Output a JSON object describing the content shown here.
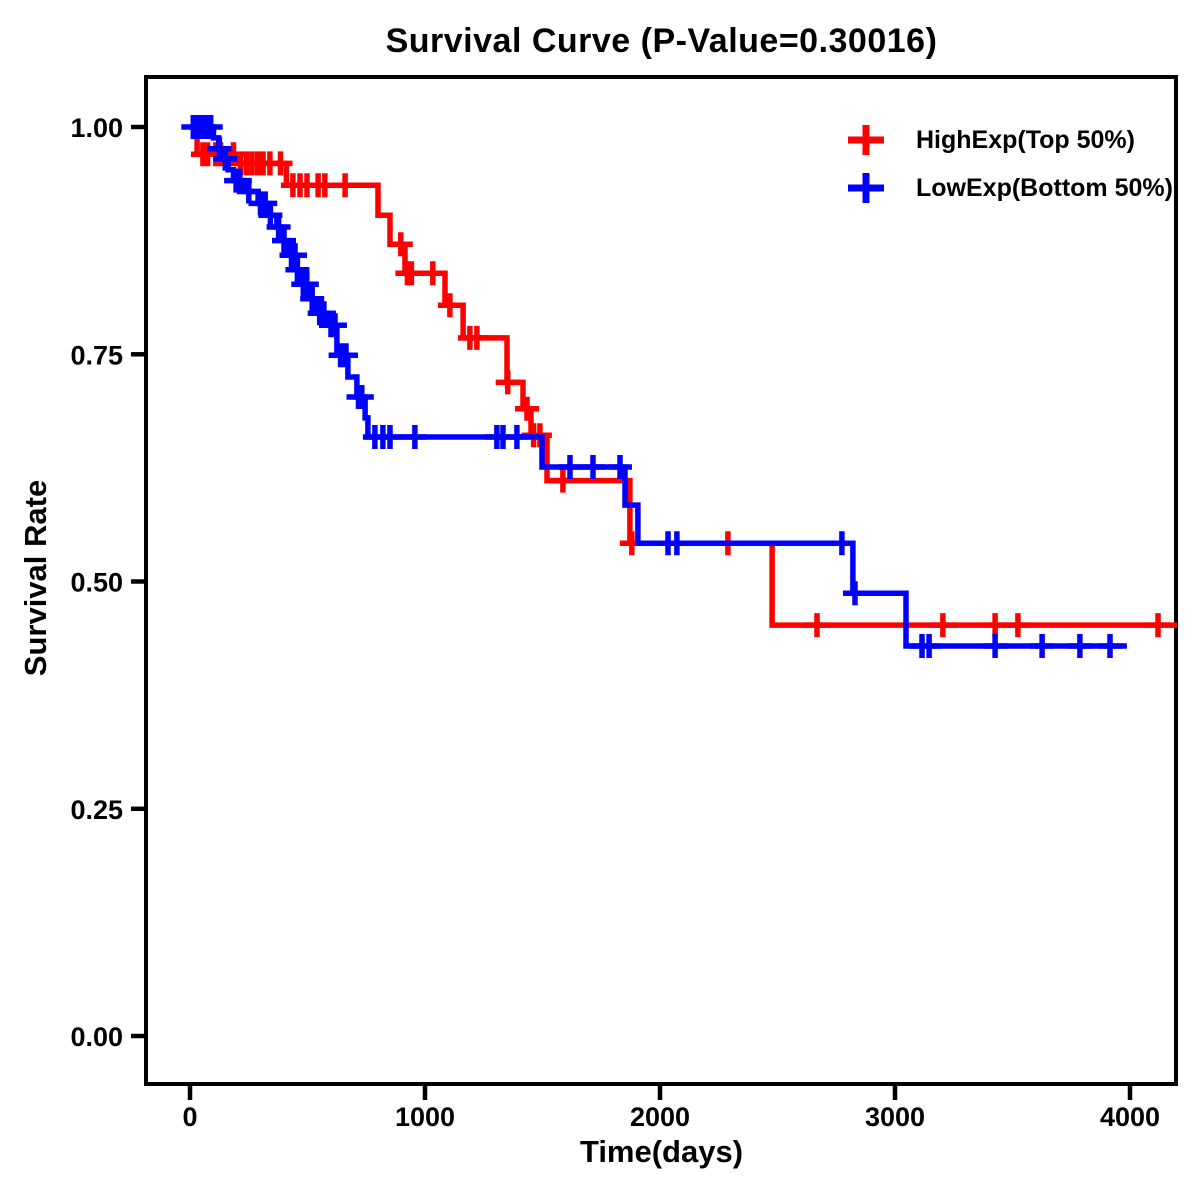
{
  "chart_data": {
    "type": "line",
    "subtype": "kaplan-meier-step-curve",
    "title": "Survival Curve (P-Value=0.30016)",
    "p_value": "0.30016",
    "xlabel": "Time(days)",
    "ylabel": "Survival Rate",
    "xlim": [
      0,
      4296
    ],
    "ylim": [
      0.0,
      1.0
    ],
    "x_ticks": [
      0,
      1000,
      2000,
      3000,
      4000
    ],
    "y_ticks": [
      0.0,
      0.25,
      0.5,
      0.75,
      1.0
    ],
    "y_tick_labels": [
      "0.00",
      "0.25",
      "0.50",
      "0.75",
      "1.00"
    ],
    "grid": false,
    "legend_position": "top-right-inside",
    "colors": {
      "axis": "#000000",
      "background": "#FFFFFF",
      "high": "#FF0000",
      "low": "#0000FF"
    },
    "series": [
      {
        "name": "HighExp(Top 50%)",
        "color": "#FF0000",
        "end_time": 4200,
        "steps": [
          [
            0,
            1.0
          ],
          [
            30,
            0.97
          ],
          [
            200,
            0.96
          ],
          [
            410,
            0.936
          ],
          [
            800,
            0.903
          ],
          [
            851,
            0.871
          ],
          [
            915,
            0.839
          ],
          [
            1085,
            0.804
          ],
          [
            1162,
            0.768
          ],
          [
            1349,
            0.719
          ],
          [
            1417,
            0.69
          ],
          [
            1451,
            0.661
          ],
          [
            1519,
            0.611
          ],
          [
            1872,
            0.542
          ],
          [
            2477,
            0.452
          ]
        ],
        "censors": [
          [
            55,
            0.97
          ],
          [
            75,
            0.97
          ],
          [
            110,
            0.97
          ],
          [
            130,
            0.97
          ],
          [
            185,
            0.97
          ],
          [
            215,
            0.96
          ],
          [
            240,
            0.96
          ],
          [
            264,
            0.96
          ],
          [
            288,
            0.96
          ],
          [
            311,
            0.96
          ],
          [
            340,
            0.96
          ],
          [
            385,
            0.96
          ],
          [
            438,
            0.936
          ],
          [
            468,
            0.936
          ],
          [
            498,
            0.936
          ],
          [
            545,
            0.936
          ],
          [
            574,
            0.936
          ],
          [
            660,
            0.936
          ],
          [
            897,
            0.871
          ],
          [
            925,
            0.839
          ],
          [
            942,
            0.839
          ],
          [
            1033,
            0.839
          ],
          [
            1106,
            0.804
          ],
          [
            1191,
            0.768
          ],
          [
            1221,
            0.768
          ],
          [
            1352,
            0.719
          ],
          [
            1434,
            0.69
          ],
          [
            1462,
            0.661
          ],
          [
            1489,
            0.661
          ],
          [
            1587,
            0.611
          ],
          [
            1880,
            0.542
          ],
          [
            2289,
            0.542
          ],
          [
            2668,
            0.452
          ],
          [
            3204,
            0.452
          ],
          [
            3426,
            0.452
          ],
          [
            3523,
            0.452
          ],
          [
            4119,
            0.452
          ]
        ]
      },
      {
        "name": "LowExp(Bottom 50%)",
        "color": "#0000FF",
        "end_time": 3987,
        "steps": [
          [
            0,
            1.0
          ],
          [
            100,
            0.988
          ],
          [
            122,
            0.976
          ],
          [
            142,
            0.965
          ],
          [
            162,
            0.953
          ],
          [
            185,
            0.941
          ],
          [
            230,
            0.929
          ],
          [
            290,
            0.916
          ],
          [
            332,
            0.903
          ],
          [
            370,
            0.89
          ],
          [
            391,
            0.875
          ],
          [
            420,
            0.859
          ],
          [
            450,
            0.843
          ],
          [
            472,
            0.827
          ],
          [
            510,
            0.811
          ],
          [
            540,
            0.795
          ],
          [
            587,
            0.782
          ],
          [
            625,
            0.749
          ],
          [
            672,
            0.725
          ],
          [
            710,
            0.703
          ],
          [
            745,
            0.68
          ],
          [
            757,
            0.659
          ],
          [
            1498,
            0.626
          ],
          [
            1851,
            0.584
          ],
          [
            1906,
            0.542
          ],
          [
            2821,
            0.487
          ],
          [
            3047,
            0.429
          ]
        ],
        "censors": [
          [
            14,
            1.0
          ],
          [
            26,
            1.0
          ],
          [
            38,
            1.0
          ],
          [
            50,
            1.0
          ],
          [
            62,
            1.0
          ],
          [
            74,
            1.0
          ],
          [
            88,
            1.0
          ],
          [
            125,
            0.976
          ],
          [
            150,
            0.965
          ],
          [
            196,
            0.941
          ],
          [
            212,
            0.941
          ],
          [
            250,
            0.929
          ],
          [
            300,
            0.916
          ],
          [
            320,
            0.916
          ],
          [
            342,
            0.903
          ],
          [
            377,
            0.89
          ],
          [
            400,
            0.875
          ],
          [
            432,
            0.859
          ],
          [
            447,
            0.859
          ],
          [
            457,
            0.843
          ],
          [
            482,
            0.827
          ],
          [
            497,
            0.827
          ],
          [
            520,
            0.811
          ],
          [
            552,
            0.795
          ],
          [
            570,
            0.795
          ],
          [
            600,
            0.782
          ],
          [
            617,
            0.782
          ],
          [
            641,
            0.749
          ],
          [
            664,
            0.749
          ],
          [
            717,
            0.703
          ],
          [
            731,
            0.703
          ],
          [
            787,
            0.659
          ],
          [
            821,
            0.659
          ],
          [
            851,
            0.659
          ],
          [
            957,
            0.659
          ],
          [
            1306,
            0.659
          ],
          [
            1332,
            0.659
          ],
          [
            1391,
            0.659
          ],
          [
            1617,
            0.626
          ],
          [
            1715,
            0.626
          ],
          [
            1830,
            0.626
          ],
          [
            2034,
            0.542
          ],
          [
            2072,
            0.542
          ],
          [
            2774,
            0.542
          ],
          [
            2830,
            0.487
          ],
          [
            3115,
            0.429
          ],
          [
            3145,
            0.429
          ],
          [
            3426,
            0.429
          ],
          [
            3626,
            0.429
          ],
          [
            3787,
            0.429
          ],
          [
            3915,
            0.429
          ]
        ]
      }
    ]
  }
}
